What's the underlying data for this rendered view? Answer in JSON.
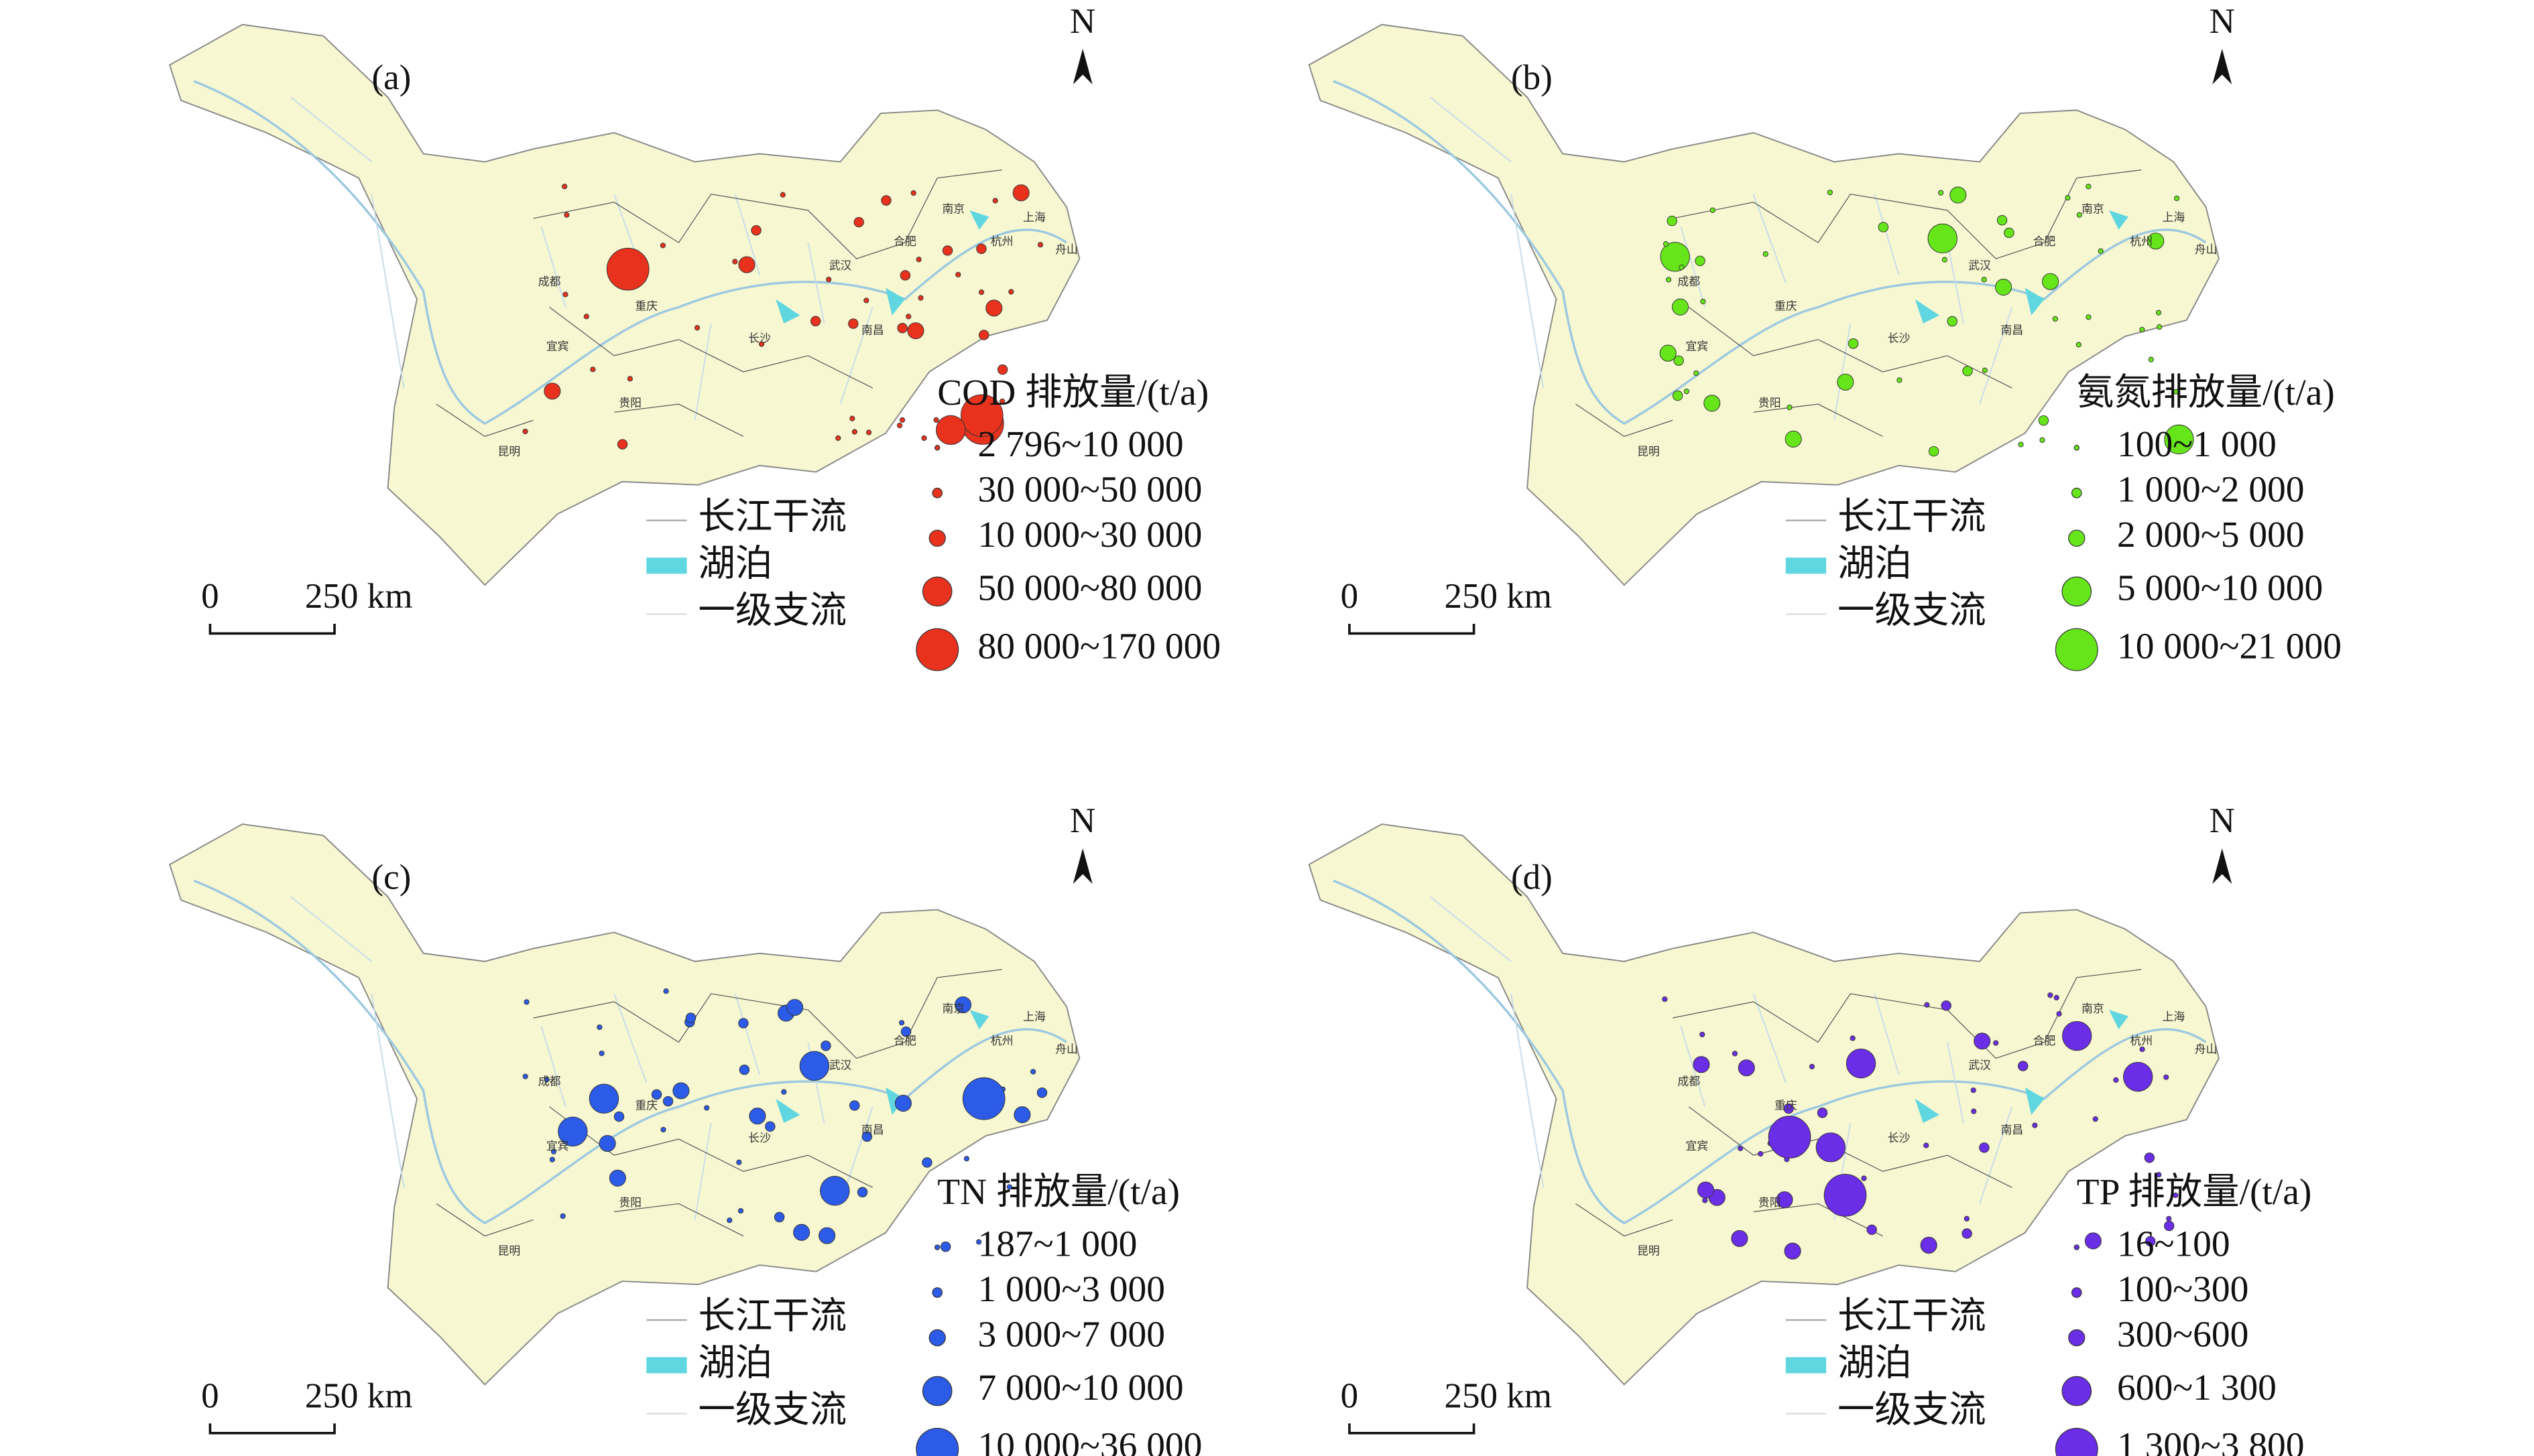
{
  "north": "N",
  "scale": {
    "zero": "0",
    "distance": "250 km"
  },
  "base_legend": [
    "长江干流",
    "湖泊",
    "一级支流"
  ],
  "cities": [
    "成都",
    "重庆",
    "武汉",
    "南京",
    "上海",
    "昆明",
    "贵阳",
    "长沙",
    "南昌",
    "合肥",
    "杭州",
    "宜宾",
    "舟山"
  ],
  "panels": [
    {
      "label": "(a)",
      "color": "#e8321e",
      "legend_title": "COD 排放量/(t/a)",
      "classes": [
        "2 796~10 000",
        "30 000~50 000",
        "10 000~30 000",
        "50 000~80 000",
        "80 000~170 000"
      ]
    },
    {
      "label": "(b)",
      "color": "#66e61a",
      "legend_title": "氨氮排放量/(t/a)",
      "classes": [
        "100~1 000",
        "1 000~2 000",
        "2 000~5 000",
        "5 000~10 000",
        "10 000~21 000"
      ]
    },
    {
      "label": "(c)",
      "color": "#2c5be8",
      "legend_title": "TN 排放量/(t/a)",
      "classes": [
        "187~1 000",
        "1 000~3 000",
        "3 000~7 000",
        "7 000~10 000",
        "10 000~36 000"
      ]
    },
    {
      "label": "(d)",
      "color": "#6a2ee6",
      "legend_title": "TP 排放量/(t/a)",
      "classes": [
        "16~100",
        "100~300",
        "300~600",
        "600~1 300",
        "1 300~3 800"
      ]
    }
  ]
}
